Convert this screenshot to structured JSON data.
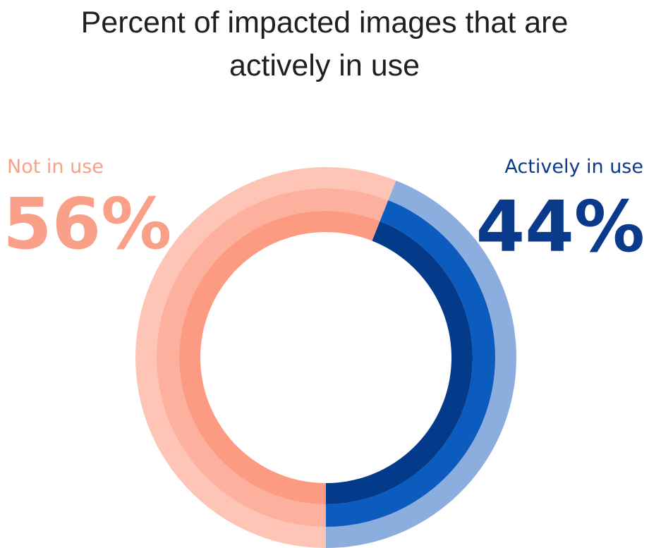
{
  "chart_data": {
    "type": "donut",
    "title": "Percent of impacted images that are actively in use",
    "categories": [
      "Not in use",
      "Actively in use"
    ],
    "values": [
      56,
      44
    ],
    "value_labels": [
      "56%",
      "44%"
    ],
    "colors": [
      [
        "#fec4b5",
        "#fdb09d",
        "#fc9a82"
      ],
      [
        "#8caedf",
        "#0c5bbf",
        "#043a8a"
      ]
    ],
    "label_colors": [
      "#fa9f88",
      "#0a3a8c"
    ]
  }
}
